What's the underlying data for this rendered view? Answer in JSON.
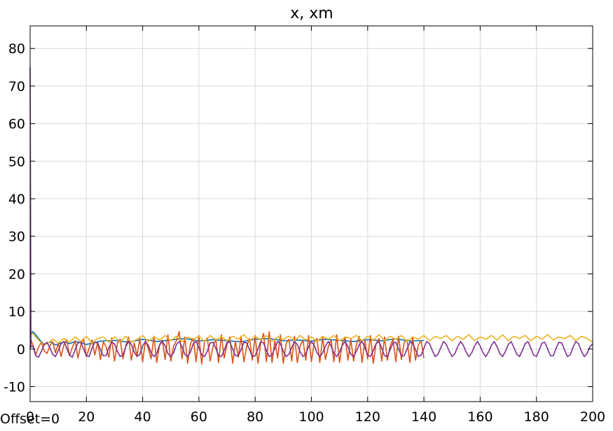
{
  "figure": {
    "offset_label": "Offset=0"
  },
  "chart_data": {
    "type": "line",
    "title": "x, xm",
    "xlabel": "",
    "ylabel": "",
    "xlim": [
      0,
      200
    ],
    "ylim": [
      -14,
      86
    ],
    "xticks": [
      0,
      20,
      40,
      60,
      80,
      100,
      120,
      140,
      160,
      180,
      200
    ],
    "yticks": [
      -10,
      0,
      10,
      20,
      30,
      40,
      50,
      60,
      70,
      80
    ],
    "grid": true,
    "legend": "none",
    "series": [
      {
        "color": "#0072bd",
        "x": [
          0,
          0.3,
          1,
          2,
          3,
          4,
          5,
          6,
          7,
          8,
          9,
          10,
          12,
          14,
          16,
          18,
          20,
          25,
          30,
          35,
          40,
          45,
          50,
          55,
          60,
          65,
          70,
          75,
          80,
          85,
          90,
          95,
          100,
          105,
          110,
          115,
          120,
          125,
          130,
          135,
          140
        ],
        "y": [
          0,
          4.2,
          4.6,
          3.8,
          2.8,
          1.9,
          1.2,
          1.5,
          1.9,
          1.6,
          1.1,
          1.3,
          1.9,
          1.4,
          2.0,
          1.7,
          1.2,
          2.1,
          2.3,
          1.8,
          2.6,
          2.0,
          2.4,
          2.8,
          2.1,
          2.5,
          2.2,
          1.9,
          2.6,
          2.8,
          2.2,
          2.4,
          2.1,
          2.6,
          2.3,
          2.0,
          2.5,
          2.2,
          2.7,
          2.1,
          2.3
        ]
      },
      {
        "color": "#d95319",
        "x": [
          0,
          0.3,
          1,
          2,
          3,
          4,
          5,
          6,
          7,
          8,
          9,
          10,
          11,
          12,
          13,
          14,
          15,
          16,
          17,
          18,
          19,
          20,
          21,
          22,
          23,
          24,
          25,
          26,
          27,
          28,
          29,
          30,
          31,
          32,
          33,
          34,
          35,
          36,
          37,
          38,
          39,
          40,
          41,
          42,
          43,
          44,
          45,
          46,
          47,
          48,
          49,
          50,
          51,
          52,
          53,
          54,
          55,
          56,
          57,
          58,
          59,
          60,
          61,
          62,
          63,
          64,
          65,
          66,
          67,
          68,
          69,
          70,
          71,
          72,
          73,
          74,
          75,
          76,
          77,
          78,
          79,
          80,
          81,
          82,
          83,
          84,
          85,
          86,
          87,
          88,
          89,
          90,
          91,
          92,
          93,
          94,
          95,
          96,
          97,
          98,
          99,
          100,
          101,
          102,
          103,
          104,
          105,
          106,
          107,
          108,
          109,
          110,
          111,
          112,
          113,
          114,
          115,
          116,
          117,
          118,
          119,
          120,
          121,
          122,
          123,
          124,
          125,
          126,
          127,
          128,
          129,
          130,
          131,
          132,
          133,
          134,
          135,
          136,
          137,
          138,
          139,
          140
        ],
        "y": [
          0,
          2.5,
          1.0,
          -1.5,
          0.5,
          1.8,
          -0.5,
          -1.2,
          0.8,
          2.0,
          -1.0,
          1.5,
          -2.0,
          1.2,
          2.5,
          -1.8,
          0.4,
          2.2,
          -2.4,
          1.0,
          2.8,
          -2.0,
          0.2,
          2.4,
          -1.6,
          1.8,
          -2.8,
          2.0,
          0.6,
          -2.2,
          3.0,
          -3.2,
          1.4,
          2.6,
          -2.6,
          0.8,
          3.2,
          -3.0,
          1.6,
          -1.8,
          2.8,
          -3.4,
          2.2,
          0.2,
          -2.6,
          3.4,
          -3.6,
          1.0,
          2.4,
          -2.8,
          3.8,
          -3.2,
          0.8,
          2.2,
          4.6,
          -2.6,
          3.2,
          -3.8,
          1.4,
          2.8,
          -3.4,
          3.6,
          -4.0,
          1.8,
          3.0,
          -3.2,
          0.6,
          2.6,
          -3.6,
          3.8,
          -2.4,
          1.2,
          3.2,
          -3.8,
          2.0,
          -2.2,
          3.4,
          -3.4,
          0.8,
          2.8,
          -3.0,
          3.6,
          -3.8,
          1.6,
          4.2,
          -3.4,
          4.6,
          -3.6,
          2.2,
          -2.4,
          3.8,
          -3.8,
          1.4,
          2.6,
          -3.2,
          3.4,
          -3.6,
          0.8,
          2.4,
          -3.0,
          3.6,
          -3.4,
          1.8,
          2.8,
          -3.6,
          3.2,
          -2.8,
          0.6,
          2.4,
          -3.4,
          3.8,
          -3.6,
          1.6,
          3.0,
          -3.0,
          2.6,
          -3.2,
          1.2,
          3.4,
          -3.6,
          2.2,
          -2.6,
          3.6,
          -3.8,
          1.4,
          2.8,
          -3.2,
          3.2,
          -3.0,
          0.8,
          2.6,
          -3.4,
          3.4,
          -2.8,
          1.8,
          2.4,
          -3.6,
          3.2,
          -3.0,
          1.0,
          2.2,
          -2.4
        ]
      },
      {
        "color": "#edb120",
        "x": [
          0,
          0.3,
          1,
          2,
          3,
          4,
          5,
          6,
          7,
          8,
          9,
          10,
          12,
          14,
          16,
          18,
          20,
          22,
          24,
          26,
          28,
          30,
          32,
          34,
          36,
          38,
          40,
          42,
          44,
          46,
          48,
          50,
          52,
          54,
          56,
          58,
          60,
          62,
          64,
          66,
          68,
          70,
          72,
          74,
          76,
          78,
          80,
          82,
          84,
          86,
          88,
          90,
          92,
          94,
          96,
          98,
          100,
          102,
          104,
          106,
          108,
          110,
          112,
          114,
          116,
          118,
          120,
          122,
          124,
          126,
          128,
          130,
          132,
          134,
          136,
          138,
          140,
          142,
          144,
          146,
          148,
          150,
          152,
          154,
          156,
          158,
          160,
          162,
          164,
          166,
          168,
          170,
          172,
          174,
          176,
          178,
          180,
          182,
          184,
          186,
          188,
          190,
          192,
          194,
          196,
          198,
          200
        ],
        "y": [
          0,
          3.8,
          4.2,
          3.2,
          2.4,
          1.6,
          1.0,
          1.4,
          2.0,
          2.6,
          2.2,
          1.6,
          2.8,
          1.8,
          3.2,
          2.0,
          3.4,
          1.6,
          2.8,
          3.2,
          1.8,
          3.2,
          2.0,
          3.4,
          1.8,
          2.6,
          3.6,
          2.0,
          3.2,
          2.4,
          3.6,
          2.2,
          3.4,
          2.0,
          3.2,
          2.6,
          3.4,
          2.0,
          3.6,
          2.4,
          3.2,
          2.2,
          3.4,
          2.6,
          3.8,
          2.2,
          3.4,
          2.4,
          3.6,
          2.0,
          3.2,
          2.6,
          3.4,
          2.2,
          3.6,
          2.4,
          3.2,
          2.0,
          3.4,
          2.6,
          3.6,
          2.2,
          3.2,
          2.8,
          3.6,
          2.2,
          3.4,
          2.4,
          3.8,
          2.2,
          3.4,
          2.6,
          3.6,
          2.0,
          3.2,
          2.6,
          3.6,
          2.2,
          3.4,
          2.8,
          3.6,
          2.2,
          3.4,
          2.6,
          3.8,
          2.2,
          3.2,
          2.6,
          3.6,
          2.4,
          3.8,
          2.2,
          3.4,
          2.8,
          3.6,
          2.2,
          3.4,
          2.6,
          3.8,
          2.4,
          3.2,
          2.8,
          3.6,
          2.2,
          3.4,
          2.8,
          1.8
        ]
      },
      {
        "color": "#7e2f8e",
        "x": [
          0,
          0.15,
          0.3,
          1,
          2,
          3,
          4,
          5,
          6,
          7,
          8,
          9,
          10,
          11,
          12,
          13,
          14,
          15,
          16,
          17,
          18,
          19,
          20,
          21,
          22,
          23,
          24,
          25,
          26,
          27,
          28,
          29,
          30,
          31,
          32,
          33,
          34,
          35,
          36,
          37,
          38,
          39,
          40,
          41,
          42,
          43,
          44,
          45,
          46,
          47,
          48,
          49,
          50,
          51,
          52,
          53,
          54,
          55,
          56,
          57,
          58,
          59,
          60,
          61,
          62,
          63,
          64,
          65,
          66,
          67,
          68,
          69,
          70,
          71,
          72,
          73,
          74,
          75,
          76,
          77,
          78,
          79,
          80,
          81,
          82,
          83,
          84,
          85,
          86,
          87,
          88,
          89,
          90,
          91,
          92,
          93,
          94,
          95,
          96,
          97,
          98,
          99,
          100,
          101,
          102,
          103,
          104,
          105,
          106,
          107,
          108,
          109,
          110,
          111,
          112,
          113,
          114,
          115,
          116,
          117,
          118,
          119,
          120,
          121,
          122,
          123,
          124,
          125,
          126,
          127,
          128,
          129,
          130,
          131,
          132,
          133,
          134,
          135,
          136,
          137,
          138,
          139,
          140,
          141,
          142,
          143,
          144,
          145,
          146,
          147,
          148,
          149,
          150,
          151,
          152,
          153,
          154,
          155,
          156,
          157,
          158,
          159,
          160,
          161,
          162,
          163,
          164,
          165,
          166,
          167,
          168,
          169,
          170,
          171,
          172,
          173,
          174,
          175,
          176,
          177,
          178,
          179,
          180,
          181,
          182,
          183,
          184,
          185,
          186,
          187,
          188,
          189,
          190,
          191,
          192,
          193,
          194,
          195,
          196,
          197,
          198,
          199,
          200
        ],
        "y": [
          75,
          40,
          0.5,
          0.8,
          -1.8,
          -2.2,
          -0.6,
          1.2,
          1.8,
          0.4,
          -1.4,
          -2.0,
          -0.4,
          1.4,
          2.0,
          0.2,
          -1.6,
          -2.2,
          -0.2,
          1.6,
          1.8,
          0.0,
          -1.8,
          -2.0,
          0.2,
          1.8,
          1.6,
          -0.2,
          -1.8,
          -1.8,
          0.4,
          1.8,
          1.4,
          -0.6,
          -2.0,
          -1.6,
          0.6,
          2.0,
          1.2,
          -0.8,
          -2.0,
          -1.4,
          0.8,
          2.0,
          1.0,
          -1.0,
          -2.0,
          -1.2,
          1.0,
          2.0,
          0.8,
          -1.2,
          -2.0,
          -1.0,
          1.2,
          2.0,
          0.6,
          -1.4,
          -2.0,
          -0.8,
          1.4,
          2.0,
          0.4,
          -1.6,
          -2.0,
          -0.6,
          1.6,
          1.8,
          0.2,
          -1.8,
          -2.0,
          -0.4,
          1.8,
          1.8,
          0.0,
          -1.8,
          -1.8,
          -0.2,
          1.8,
          1.6,
          -0.2,
          -2.0,
          -1.8,
          0.0,
          2.0,
          1.6,
          -0.4,
          -2.0,
          -1.6,
          0.2,
          2.0,
          1.4,
          -0.6,
          -2.0,
          -1.4,
          0.4,
          2.0,
          1.2,
          -0.8,
          -2.0,
          -1.2,
          0.6,
          2.0,
          1.0,
          -1.0,
          -2.0,
          -1.0,
          0.8,
          2.0,
          0.8,
          -1.2,
          -2.0,
          -0.8,
          1.0,
          2.0,
          0.6,
          -1.4,
          -2.0,
          -0.6,
          1.2,
          2.0,
          0.4,
          -1.6,
          -2.0,
          -0.4,
          1.4,
          2.0,
          0.2,
          -1.8,
          -2.0,
          -0.2,
          1.6,
          1.8,
          0.0,
          -1.8,
          -1.8,
          0.0,
          1.8,
          1.6,
          -0.2,
          -2.0,
          -1.6,
          0.2,
          2.0,
          1.4,
          -0.4,
          -2.0,
          -1.4,
          0.4,
          2.0,
          1.2,
          -0.6,
          -2.0,
          -1.2,
          0.6,
          2.0,
          1.0,
          -0.8,
          -2.0,
          -1.0,
          0.8,
          2.0,
          0.8,
          -1.0,
          -2.0,
          -0.8,
          1.0,
          2.0,
          0.6,
          -1.2,
          -2.0,
          -0.6,
          1.2,
          2.0,
          0.4,
          -1.4,
          -2.0,
          -0.4,
          1.4,
          2.0,
          0.2,
          -1.6,
          -2.0,
          -0.2,
          1.6,
          1.8,
          0.0,
          -1.8,
          -1.8,
          0.2,
          1.8,
          1.6,
          -0.2,
          -2.0,
          -1.6,
          0.4,
          2.0,
          1.4,
          -0.6,
          -2.0,
          -1.2,
          0.6,
          1.4
        ]
      }
    ]
  }
}
